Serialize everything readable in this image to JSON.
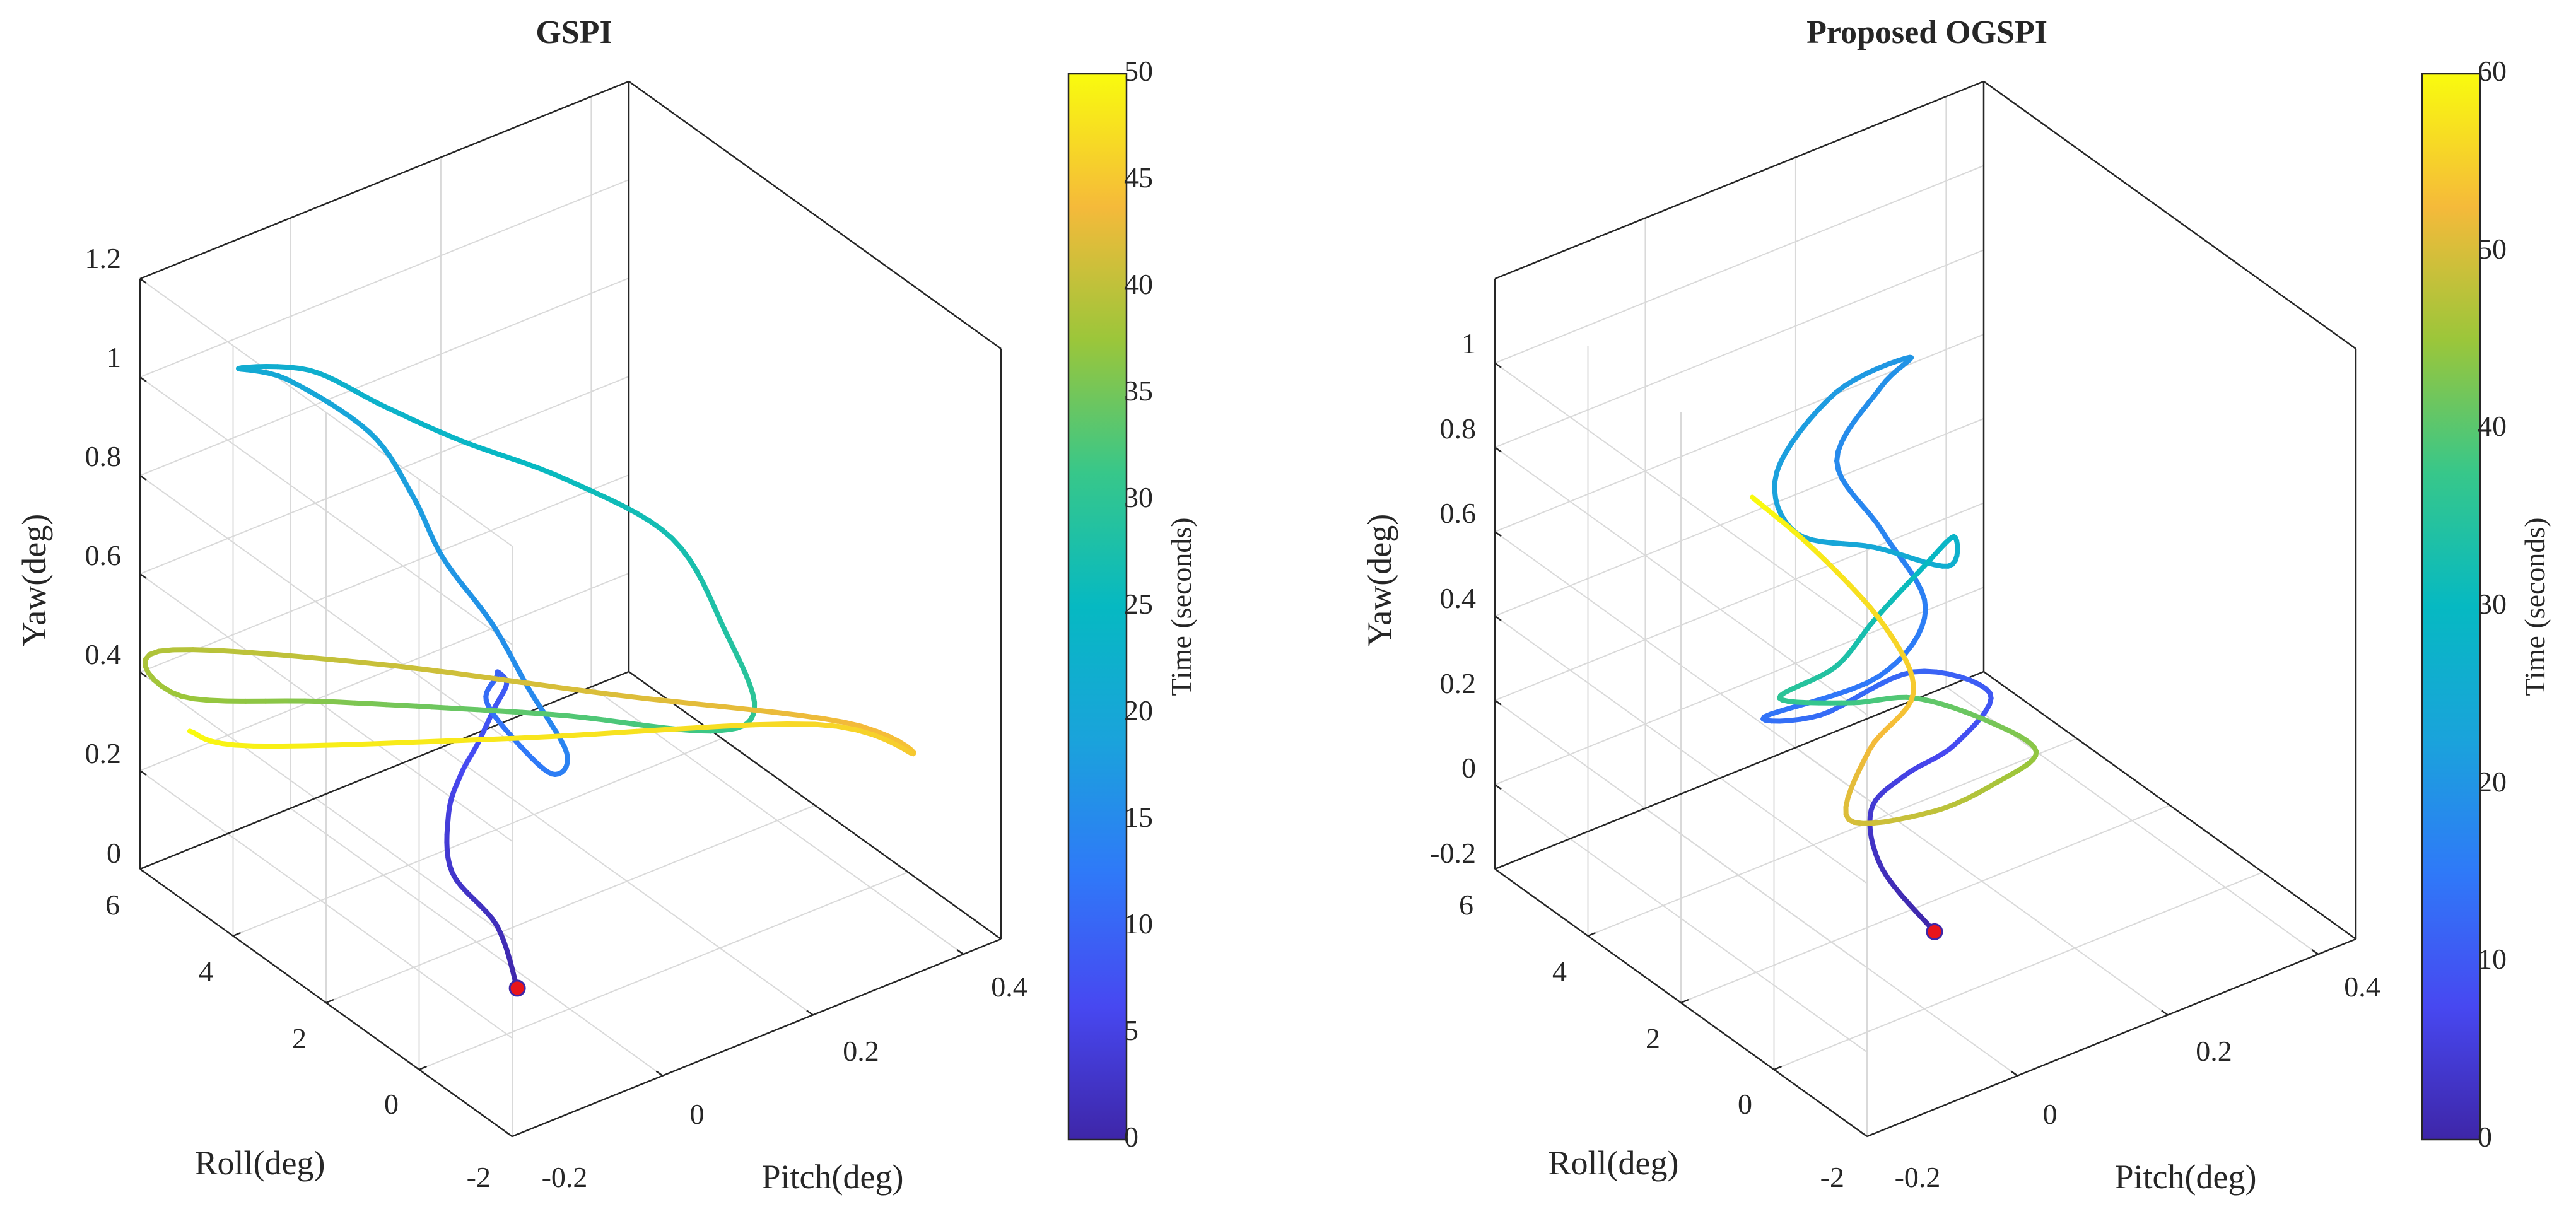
{
  "chart_data": [
    {
      "id": "gspi",
      "type": "line3d",
      "title": "GSPI",
      "xlabel": "Pitch(deg)",
      "ylabel": "Roll(deg)",
      "zlabel": "Yaw(deg)",
      "colorbar_label": "Time (seconds)",
      "colormap": "parula",
      "colorbar_range": [
        0,
        50
      ],
      "colorbar_ticks": [
        "0",
        "5",
        "10",
        "15",
        "20",
        "25",
        "30",
        "35",
        "40",
        "45",
        "50"
      ],
      "x_ticks": [
        "-0.2",
        "0",
        "0.2",
        "0.4"
      ],
      "y_ticks": [
        "-2",
        "0",
        "2",
        "4",
        "6"
      ],
      "z_ticks": [
        "0",
        "0.2",
        "0.4",
        "0.6",
        "0.8",
        "1",
        "1.2"
      ],
      "xlim": [
        -0.2,
        0.45
      ],
      "ylim": [
        -2,
        6
      ],
      "zlim": [
        0,
        1.2
      ],
      "grid": true,
      "start_marker_color": "#e8141b",
      "series": [
        {
          "values": [
            {
              "t": 0,
              "x": -0.02,
              "y": 0.8,
              "z": 0.0
            },
            {
              "t": 1.5,
              "x": -0.01,
              "y": 1.4,
              "z": 0.08
            },
            {
              "t": 3,
              "x": -0.02,
              "y": 2.2,
              "z": 0.14
            },
            {
              "t": 4.5,
              "x": 0.0,
              "y": 2.6,
              "z": 0.22
            },
            {
              "t": 6,
              "x": 0.01,
              "y": 2.5,
              "z": 0.3
            },
            {
              "t": 7,
              "x": 0.02,
              "y": 2.3,
              "z": 0.37
            },
            {
              "t": 8,
              "x": 0.03,
              "y": 2.1,
              "z": 0.45
            },
            {
              "t": 8.7,
              "x": 0.04,
              "y": 2.0,
              "z": 0.5
            },
            {
              "t": 9.3,
              "x": 0.035,
              "y": 2.1,
              "z": 0.52
            },
            {
              "t": 10,
              "x": 0.045,
              "y": 2.3,
              "z": 0.49
            },
            {
              "t": 11,
              "x": 0.05,
              "y": 2.6,
              "z": 0.42
            },
            {
              "t": 12,
              "x": 0.07,
              "y": 2.4,
              "z": 0.35
            },
            {
              "t": 13,
              "x": 0.1,
              "y": 2.0,
              "z": 0.28
            },
            {
              "t": 14,
              "x": 0.12,
              "y": 2.0,
              "z": 0.31
            },
            {
              "t": 15,
              "x": 0.1,
              "y": 2.5,
              "z": 0.42
            },
            {
              "t": 16,
              "x": 0.07,
              "y": 2.8,
              "z": 0.55
            },
            {
              "t": 17,
              "x": 0.03,
              "y": 3.2,
              "z": 0.68
            },
            {
              "t": 18,
              "x": 0.02,
              "y": 3.7,
              "z": 0.78
            },
            {
              "t": 19,
              "x": 0.0,
              "y": 4.3,
              "z": 0.88
            },
            {
              "t": 20,
              "x": -0.06,
              "y": 5.1,
              "z": 0.97
            },
            {
              "t": 21,
              "x": -0.1,
              "y": 5.5,
              "z": 0.99
            },
            {
              "t": 22,
              "x": -0.03,
              "y": 5.1,
              "z": 0.97
            },
            {
              "t": 23,
              "x": 0.02,
              "y": 4.3,
              "z": 0.92
            },
            {
              "t": 24,
              "x": 0.08,
              "y": 3.6,
              "z": 0.86
            },
            {
              "t": 25.5,
              "x": 0.17,
              "y": 2.8,
              "z": 0.78
            },
            {
              "t": 27,
              "x": 0.26,
              "y": 2.0,
              "z": 0.66
            },
            {
              "t": 28.5,
              "x": 0.3,
              "y": 1.5,
              "z": 0.48
            },
            {
              "t": 30,
              "x": 0.32,
              "y": 1.2,
              "z": 0.33
            },
            {
              "t": 31.5,
              "x": 0.28,
              "y": 1.5,
              "z": 0.29
            },
            {
              "t": 33,
              "x": 0.16,
              "y": 2.6,
              "z": 0.32
            },
            {
              "t": 34.5,
              "x": 0.06,
              "y": 3.6,
              "z": 0.33
            },
            {
              "t": 36,
              "x": -0.05,
              "y": 4.5,
              "z": 0.35
            },
            {
              "t": 37.5,
              "x": -0.17,
              "y": 5.6,
              "z": 0.36
            },
            {
              "t": 39,
              "x": -0.2,
              "y": 5.6,
              "z": 0.47
            },
            {
              "t": 40.5,
              "x": -0.05,
              "y": 3.6,
              "z": 0.49
            },
            {
              "t": 42,
              "x": 0.15,
              "y": 1.4,
              "z": 0.45
            },
            {
              "t": 43.5,
              "x": 0.34,
              "y": -0.4,
              "z": 0.4
            },
            {
              "t": 45,
              "x": 0.42,
              "y": -0.6,
              "z": 0.3
            },
            {
              "t": 46.5,
              "x": 0.4,
              "y": 1.2,
              "z": 0.25
            },
            {
              "t": 48,
              "x": 0.15,
              "y": 3.5,
              "z": 0.22
            },
            {
              "t": 49,
              "x": -0.08,
              "y": 5.5,
              "z": 0.21
            },
            {
              "t": 50,
              "x": -0.14,
              "y": 5.9,
              "z": 0.25
            }
          ]
        }
      ]
    },
    {
      "id": "ogspi",
      "type": "line3d",
      "title": "Proposed OGSPI",
      "xlabel": "Pitch(deg)",
      "ylabel": "Roll(deg)",
      "zlabel": "Yaw(deg)",
      "colorbar_label": "Time (seconds)",
      "colormap": "parula",
      "colorbar_range": [
        0,
        60
      ],
      "colorbar_ticks": [
        "0",
        "10",
        "20",
        "30",
        "40",
        "50",
        "60"
      ],
      "x_ticks": [
        "-0.2",
        "0",
        "0.2",
        "0.4"
      ],
      "y_ticks": [
        "-2",
        "0",
        "2",
        "4",
        "6"
      ],
      "z_ticks": [
        "-0.2",
        "0",
        "0.2",
        "0.4",
        "0.6",
        "0.8",
        "1"
      ],
      "xlim": [
        -0.2,
        0.45
      ],
      "ylim": [
        -2,
        6
      ],
      "zlim": [
        -0.2,
        1.2
      ],
      "grid": true,
      "start_marker_color": "#e8141b",
      "series": [
        {
          "values": [
            {
              "t": 0,
              "x": 0.1,
              "y": 1.4,
              "z": -0.2
            },
            {
              "t": 2,
              "x": 0.08,
              "y": 2.2,
              "z": -0.1
            },
            {
              "t": 4,
              "x": 0.09,
              "y": 2.6,
              "z": 0.0
            },
            {
              "t": 6,
              "x": 0.11,
              "y": 2.2,
              "z": 0.1
            },
            {
              "t": 8,
              "x": 0.14,
              "y": 1.6,
              "z": 0.2
            },
            {
              "t": 10,
              "x": 0.18,
              "y": 1.5,
              "z": 0.3
            },
            {
              "t": 12,
              "x": 0.14,
              "y": 2.5,
              "z": 0.3
            },
            {
              "t": 13,
              "x": 0.06,
              "y": 3.2,
              "z": 0.2
            },
            {
              "t": 14,
              "x": 0.01,
              "y": 3.6,
              "z": 0.2
            },
            {
              "t": 15,
              "x": 0.1,
              "y": 2.6,
              "z": 0.31
            },
            {
              "t": 16,
              "x": 0.15,
              "y": 2.4,
              "z": 0.45
            },
            {
              "t": 17,
              "x": 0.13,
              "y": 3.0,
              "z": 0.6
            },
            {
              "t": 18,
              "x": 0.1,
              "y": 3.5,
              "z": 0.75
            },
            {
              "t": 19,
              "x": 0.14,
              "y": 3.2,
              "z": 0.92
            },
            {
              "t": 20,
              "x": 0.16,
              "y": 2.9,
              "z": 1.0
            },
            {
              "t": 21,
              "x": 0.08,
              "y": 3.2,
              "z": 0.95
            },
            {
              "t": 22,
              "x": 0.02,
              "y": 3.5,
              "z": 0.78
            },
            {
              "t": 23,
              "x": 0.04,
              "y": 3.4,
              "z": 0.63
            },
            {
              "t": 24,
              "x": 0.12,
              "y": 3.0,
              "z": 0.57
            },
            {
              "t": 26,
              "x": 0.18,
              "y": 2.4,
              "z": 0.53
            },
            {
              "t": 28,
              "x": 0.2,
              "y": 2.6,
              "z": 0.57
            },
            {
              "t": 30,
              "x": 0.17,
              "y": 2.8,
              "z": 0.5
            },
            {
              "t": 32,
              "x": 0.12,
              "y": 3.0,
              "z": 0.4
            },
            {
              "t": 34,
              "x": 0.08,
              "y": 3.2,
              "z": 0.3
            },
            {
              "t": 36,
              "x": 0.03,
              "y": 3.6,
              "z": 0.23
            },
            {
              "t": 38,
              "x": 0.1,
              "y": 3.2,
              "z": 0.2
            },
            {
              "t": 40,
              "x": 0.16,
              "y": 2.8,
              "z": 0.2
            },
            {
              "t": 42,
              "x": 0.22,
              "y": 2.2,
              "z": 0.15
            },
            {
              "t": 44,
              "x": 0.26,
              "y": 1.8,
              "z": 0.08
            },
            {
              "t": 46,
              "x": 0.22,
              "y": 2.0,
              "z": 0.02
            },
            {
              "t": 48,
              "x": 0.14,
              "y": 2.1,
              "z": 0.0
            },
            {
              "t": 50,
              "x": 0.06,
              "y": 2.6,
              "z": 0.0
            },
            {
              "t": 52,
              "x": 0.1,
              "y": 2.8,
              "z": 0.12
            },
            {
              "t": 54,
              "x": 0.14,
              "y": 2.5,
              "z": 0.25
            },
            {
              "t": 56,
              "x": 0.12,
              "y": 2.8,
              "z": 0.4
            },
            {
              "t": 58,
              "x": 0.06,
              "y": 3.3,
              "z": 0.58
            },
            {
              "t": 60,
              "x": 0.0,
              "y": 3.7,
              "z": 0.72
            }
          ]
        }
      ]
    }
  ]
}
